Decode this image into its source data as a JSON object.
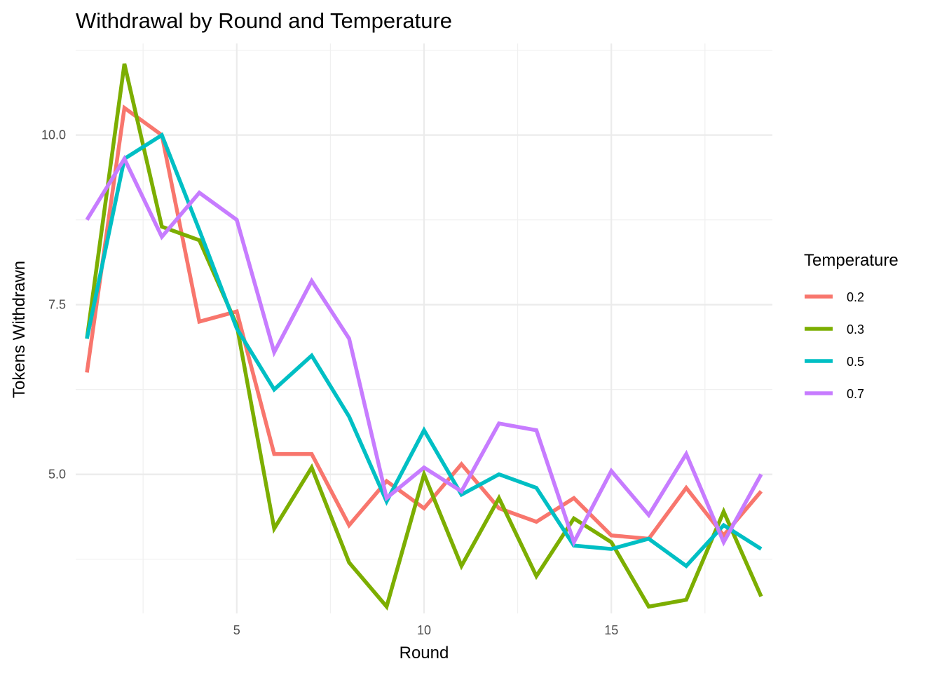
{
  "chart_data": {
    "type": "line",
    "title": "Withdrawal by Round and Temperature",
    "xlabel": "Round",
    "ylabel": "Tokens Withdrawn",
    "xlim": [
      0.7,
      19.3
    ],
    "ylim": [
      2.95,
      11.35
    ],
    "x_ticks": [
      5,
      10,
      15
    ],
    "y_ticks": [
      5.0,
      7.5,
      10.0
    ],
    "x_tick_labels": [
      "5",
      "10",
      "15"
    ],
    "y_tick_labels": [
      "5.0",
      "7.5",
      "10.0"
    ],
    "grid": true,
    "legend": {
      "title": "Temperature",
      "position": "right"
    },
    "x": [
      1,
      2,
      3,
      4,
      5,
      6,
      7,
      8,
      9,
      10,
      11,
      12,
      13,
      14,
      15,
      16,
      17,
      18,
      19
    ],
    "series": [
      {
        "name": "0.2",
        "color": "#F8766D",
        "values": [
          6.5,
          10.4,
          10.0,
          7.25,
          7.4,
          5.3,
          5.3,
          4.25,
          4.9,
          4.5,
          5.15,
          4.5,
          4.3,
          4.65,
          4.1,
          4.05,
          4.8,
          4.1,
          4.75
        ]
      },
      {
        "name": "0.3",
        "color": "#7CAE00",
        "values": [
          7.0,
          11.05,
          8.65,
          8.45,
          7.2,
          4.2,
          5.1,
          3.7,
          3.05,
          5.0,
          3.65,
          4.65,
          3.5,
          4.35,
          4.0,
          3.05,
          3.15,
          4.45,
          3.2
        ]
      },
      {
        "name": "0.5",
        "color": "#00BFC4",
        "values": [
          7.0,
          9.65,
          10.0,
          8.6,
          7.15,
          6.25,
          6.75,
          5.85,
          4.6,
          5.65,
          4.7,
          5.0,
          4.8,
          3.95,
          3.9,
          4.05,
          3.65,
          4.25,
          3.9
        ]
      },
      {
        "name": "0.7",
        "color": "#C77CFF",
        "values": [
          8.75,
          9.65,
          8.5,
          9.15,
          8.75,
          6.8,
          7.85,
          7.0,
          4.65,
          5.1,
          4.75,
          5.75,
          5.65,
          4.0,
          5.05,
          4.4,
          5.3,
          4.0,
          5.0
        ]
      }
    ]
  }
}
